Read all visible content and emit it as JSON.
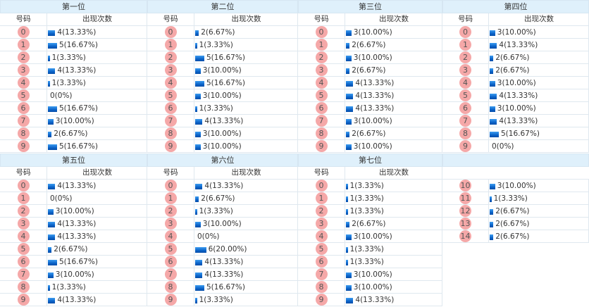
{
  "col_number": "号码",
  "col_count": "出现次数",
  "sections": [
    {
      "title": "第一位",
      "rows": [
        {
          "n": "0",
          "count": 4,
          "label": "4(13.33%)"
        },
        {
          "n": "1",
          "count": 5,
          "label": "5(16.67%)"
        },
        {
          "n": "2",
          "count": 1,
          "label": "1(3.33%)"
        },
        {
          "n": "3",
          "count": 4,
          "label": "4(13.33%)"
        },
        {
          "n": "4",
          "count": 1,
          "label": "1(3.33%)"
        },
        {
          "n": "5",
          "count": 0,
          "label": "0(0%)"
        },
        {
          "n": "6",
          "count": 5,
          "label": "5(16.67%)"
        },
        {
          "n": "7",
          "count": 3,
          "label": "3(10.00%)"
        },
        {
          "n": "8",
          "count": 2,
          "label": "2(6.67%)"
        },
        {
          "n": "9",
          "count": 5,
          "label": "5(16.67%)"
        }
      ]
    },
    {
      "title": "第二位",
      "rows": [
        {
          "n": "0",
          "count": 2,
          "label": "2(6.67%)"
        },
        {
          "n": "1",
          "count": 1,
          "label": "1(3.33%)"
        },
        {
          "n": "2",
          "count": 5,
          "label": "5(16.67%)"
        },
        {
          "n": "3",
          "count": 3,
          "label": "3(10.00%)"
        },
        {
          "n": "4",
          "count": 5,
          "label": "5(16.67%)"
        },
        {
          "n": "5",
          "count": 3,
          "label": "3(10.00%)"
        },
        {
          "n": "6",
          "count": 1,
          "label": "1(3.33%)"
        },
        {
          "n": "7",
          "count": 4,
          "label": "4(13.33%)"
        },
        {
          "n": "8",
          "count": 3,
          "label": "3(10.00%)"
        },
        {
          "n": "9",
          "count": 3,
          "label": "3(10.00%)"
        }
      ]
    },
    {
      "title": "第三位",
      "rows": [
        {
          "n": "0",
          "count": 3,
          "label": "3(10.00%)"
        },
        {
          "n": "1",
          "count": 2,
          "label": "2(6.67%)"
        },
        {
          "n": "2",
          "count": 3,
          "label": "3(10.00%)"
        },
        {
          "n": "3",
          "count": 2,
          "label": "2(6.67%)"
        },
        {
          "n": "4",
          "count": 4,
          "label": "4(13.33%)"
        },
        {
          "n": "5",
          "count": 4,
          "label": "4(13.33%)"
        },
        {
          "n": "6",
          "count": 4,
          "label": "4(13.33%)"
        },
        {
          "n": "7",
          "count": 3,
          "label": "3(10.00%)"
        },
        {
          "n": "8",
          "count": 2,
          "label": "2(6.67%)"
        },
        {
          "n": "9",
          "count": 3,
          "label": "3(10.00%)"
        }
      ]
    },
    {
      "title": "第四位",
      "rows": [
        {
          "n": "0",
          "count": 3,
          "label": "3(10.00%)"
        },
        {
          "n": "1",
          "count": 4,
          "label": "4(13.33%)"
        },
        {
          "n": "2",
          "count": 2,
          "label": "2(6.67%)"
        },
        {
          "n": "3",
          "count": 2,
          "label": "2(6.67%)"
        },
        {
          "n": "4",
          "count": 3,
          "label": "3(10.00%)"
        },
        {
          "n": "5",
          "count": 4,
          "label": "4(13.33%)"
        },
        {
          "n": "6",
          "count": 3,
          "label": "3(10.00%)"
        },
        {
          "n": "7",
          "count": 4,
          "label": "4(13.33%)"
        },
        {
          "n": "8",
          "count": 5,
          "label": "5(16.67%)"
        },
        {
          "n": "9",
          "count": 0,
          "label": "0(0%)"
        }
      ]
    },
    {
      "title": "第五位",
      "rows": [
        {
          "n": "0",
          "count": 4,
          "label": "4(13.33%)"
        },
        {
          "n": "1",
          "count": 0,
          "label": "0(0%)"
        },
        {
          "n": "2",
          "count": 3,
          "label": "3(10.00%)"
        },
        {
          "n": "3",
          "count": 4,
          "label": "4(13.33%)"
        },
        {
          "n": "4",
          "count": 4,
          "label": "4(13.33%)"
        },
        {
          "n": "5",
          "count": 2,
          "label": "2(6.67%)"
        },
        {
          "n": "6",
          "count": 5,
          "label": "5(16.67%)"
        },
        {
          "n": "7",
          "count": 3,
          "label": "3(10.00%)"
        },
        {
          "n": "8",
          "count": 1,
          "label": "1(3.33%)"
        },
        {
          "n": "9",
          "count": 4,
          "label": "4(13.33%)"
        }
      ]
    },
    {
      "title": "第六位",
      "rows": [
        {
          "n": "0",
          "count": 4,
          "label": "4(13.33%)"
        },
        {
          "n": "1",
          "count": 2,
          "label": "2(6.67%)"
        },
        {
          "n": "2",
          "count": 1,
          "label": "1(3.33%)"
        },
        {
          "n": "3",
          "count": 3,
          "label": "3(10.00%)"
        },
        {
          "n": "4",
          "count": 0,
          "label": "0(0%)"
        },
        {
          "n": "5",
          "count": 6,
          "label": "6(20.00%)"
        },
        {
          "n": "6",
          "count": 4,
          "label": "4(13.33%)"
        },
        {
          "n": "7",
          "count": 4,
          "label": "4(13.33%)"
        },
        {
          "n": "8",
          "count": 5,
          "label": "5(16.67%)"
        },
        {
          "n": "9",
          "count": 1,
          "label": "1(3.33%)"
        }
      ]
    },
    {
      "title": "第七位",
      "rows": [
        {
          "n": "0",
          "count": 1,
          "label": "1(3.33%)"
        },
        {
          "n": "1",
          "count": 1,
          "label": "1(3.33%)"
        },
        {
          "n": "2",
          "count": 1,
          "label": "1(3.33%)"
        },
        {
          "n": "3",
          "count": 2,
          "label": "2(6.67%)"
        },
        {
          "n": "4",
          "count": 3,
          "label": "3(10.00%)"
        },
        {
          "n": "5",
          "count": 1,
          "label": "1(3.33%)"
        },
        {
          "n": "6",
          "count": 1,
          "label": "1(3.33%)"
        },
        {
          "n": "7",
          "count": 3,
          "label": "3(10.00%)"
        },
        {
          "n": "8",
          "count": 3,
          "label": "3(10.00%)"
        },
        {
          "n": "9",
          "count": 4,
          "label": "4(13.33%)"
        }
      ]
    },
    {
      "title": "",
      "rows": [
        {
          "n": "10",
          "count": 3,
          "label": "3(10.00%)"
        },
        {
          "n": "11",
          "count": 1,
          "label": "1(3.33%)"
        },
        {
          "n": "12",
          "count": 2,
          "label": "2(6.67%)"
        },
        {
          "n": "13",
          "count": 2,
          "label": "2(6.67%)"
        },
        {
          "n": "14",
          "count": 2,
          "label": "2(6.67%)"
        }
      ]
    }
  ]
}
